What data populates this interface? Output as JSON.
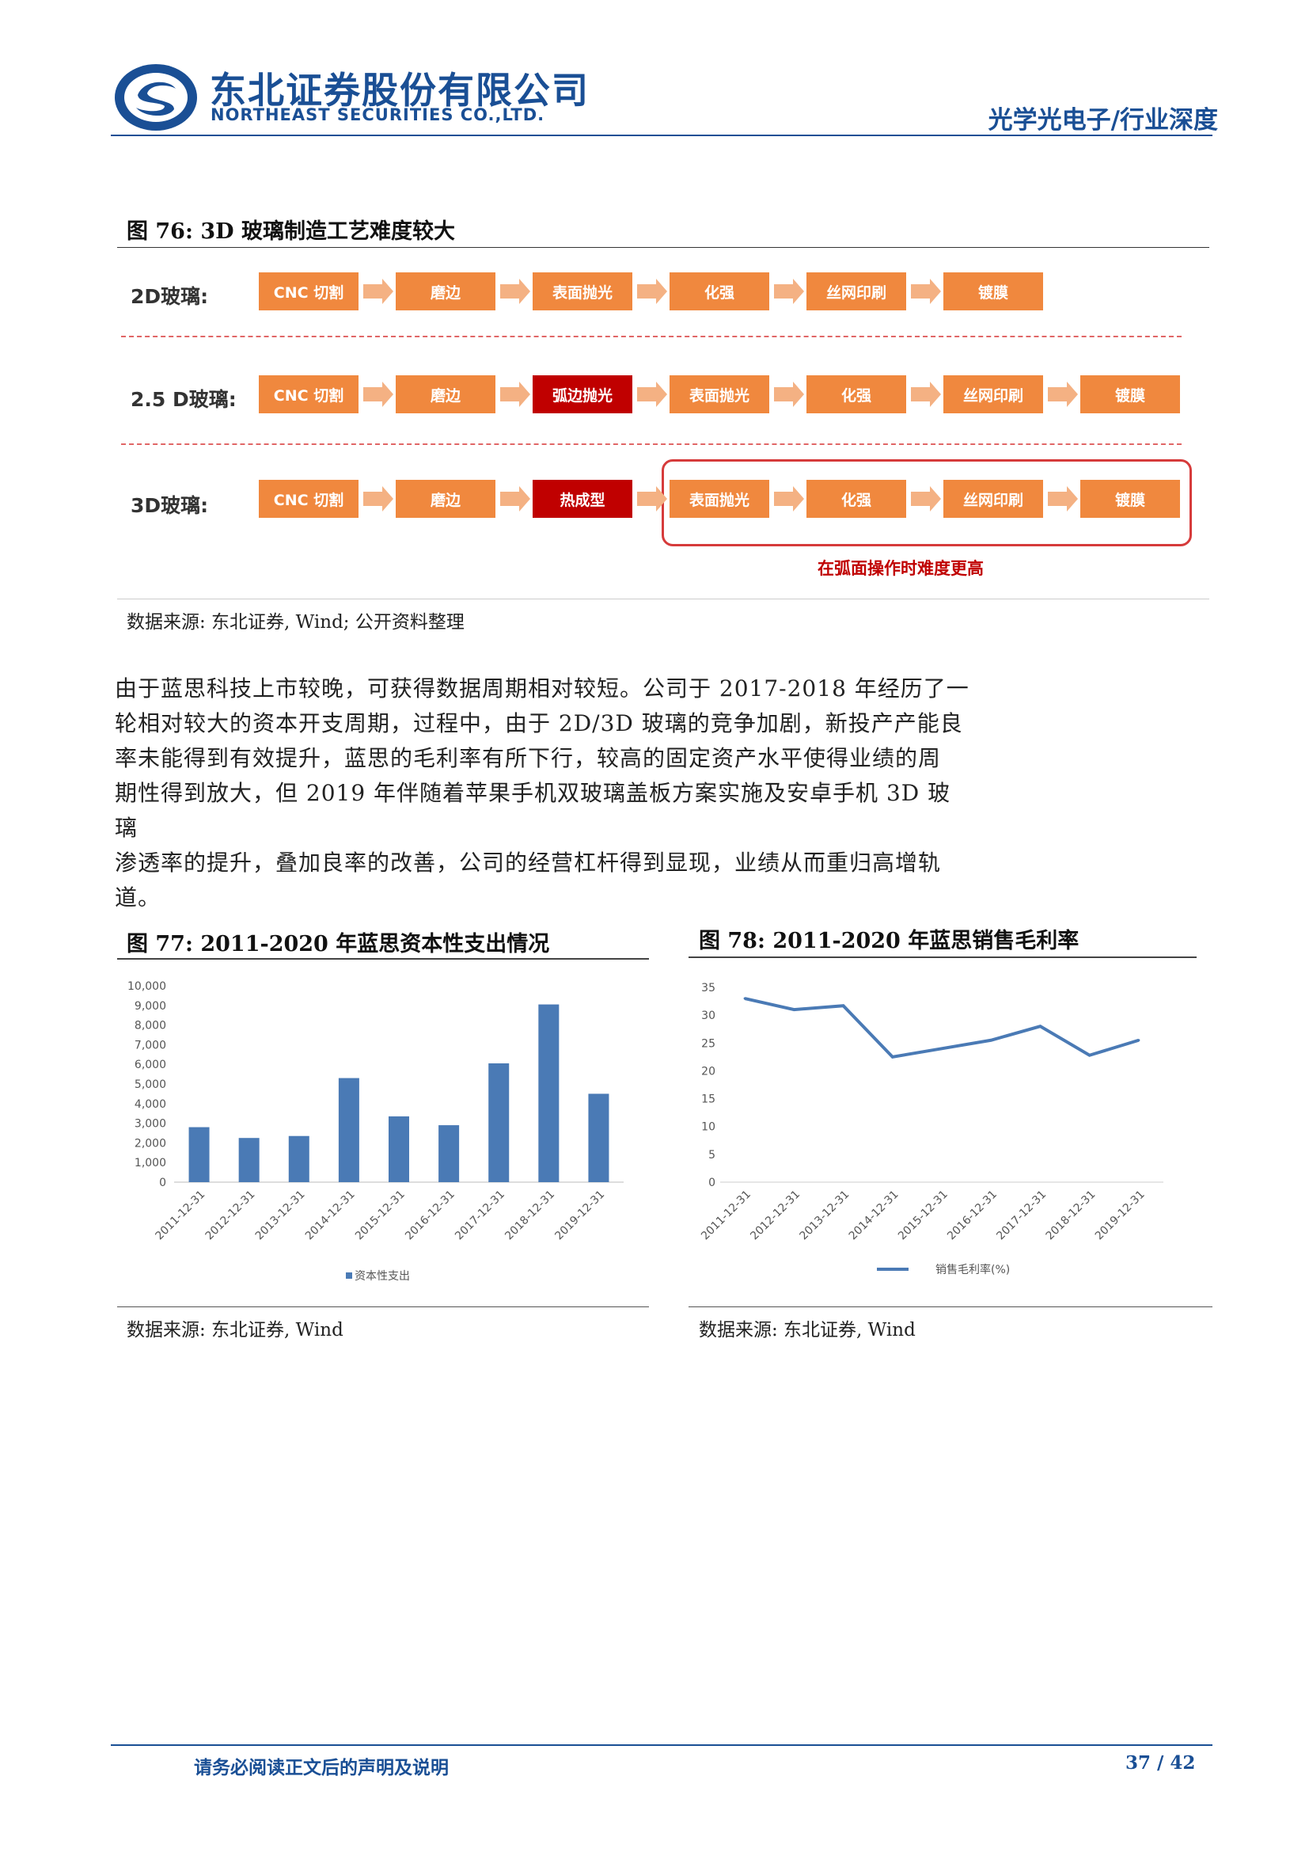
{
  "header": {
    "company_cn": "东北证券股份有限公司",
    "company_en": "NORTHEAST SECURITIES CO.,LTD.",
    "section": "光学光电子/行业深度"
  },
  "fig76": {
    "title": "图 76:  3D 玻璃制造工艺难度较大",
    "rows": [
      {
        "label": "2D玻璃:",
        "steps": [
          "CNC 切割",
          "磨边",
          "表面抛光",
          "化强",
          "丝网印刷",
          "镀膜"
        ]
      },
      {
        "label": "2.5 D玻璃:",
        "steps": [
          "CNC 切割",
          "磨边",
          "弧边抛光",
          "表面抛光",
          "化强",
          "丝网印刷",
          "镀膜"
        ]
      },
      {
        "label": "3D玻璃:",
        "steps": [
          "CNC 切割",
          "磨边",
          "热成型",
          "表面抛光",
          "化强",
          "丝网印刷",
          "镀膜"
        ]
      }
    ],
    "note": "在弧面操作时难度更高",
    "source": "数据来源:  东北证券,  Wind;  公开资料整理"
  },
  "body": {
    "lines": [
      "由于蓝思科技上市较晚，可获得数据周期相对较短。公司于 2017-2018 年经历了一",
      "轮相对较大的资本开支周期，过程中，由于 2D/3D 玻璃的竞争加剧，新投产产能良",
      "率未能得到有效提升，蓝思的毛利率有所下行，较高的固定资产水平使得业绩的周",
      "期性得到放大，但 2019 年伴随着苹果手机双玻璃盖板方案实施及安卓手机 3D 玻璃",
      "渗透率的提升，叠加良率的改善，公司的经营杠杆得到显现，业绩从而重归高增轨",
      "道。"
    ]
  },
  "fig77": {
    "title": "图 77:  2011-2020 年蓝思资本性支出情况",
    "source": "数据来源:  东北证券,  Wind"
  },
  "fig78": {
    "title": "图 78:  2011-2020 年蓝思销售毛利率",
    "source": "数据来源:  东北证券,  Wind"
  },
  "chart_data": [
    {
      "type": "bar",
      "categories": [
        "2011-12-31",
        "2012-12-31",
        "2013-12-31",
        "2014-12-31",
        "2015-12-31",
        "2016-12-31",
        "2017-12-31",
        "2018-12-31",
        "2019-12-31"
      ],
      "series": [
        {
          "name": "资本性支出",
          "values": [
            2800,
            2250,
            2350,
            5300,
            3350,
            2900,
            6050,
            9050,
            4500
          ]
        }
      ],
      "ylim": [
        0,
        10000
      ],
      "yticks": [
        "10,000",
        "9,000",
        "8,000",
        "7,000",
        "6,000",
        "5,000",
        "4,000",
        "3,000",
        "2,000",
        "1,000",
        "0"
      ],
      "color": "#4a7ab5",
      "legend": "bottom"
    },
    {
      "type": "line",
      "categories": [
        "2011-12-31",
        "2012-12-31",
        "2013-12-31",
        "2014-12-31",
        "2015-12-31",
        "2016-12-31",
        "2017-12-31",
        "2018-12-31",
        "2019-12-31"
      ],
      "series": [
        {
          "name": "销售毛利率(%)",
          "values": [
            33.0,
            31.0,
            31.7,
            22.5,
            24.0,
            25.5,
            28.0,
            22.8,
            25.5
          ]
        }
      ],
      "ylim": [
        0,
        35
      ],
      "yticks": [
        "35",
        "30",
        "25",
        "20",
        "15",
        "10",
        "5",
        "0"
      ],
      "color": "#4a7ab5",
      "legend": "bottom"
    }
  ],
  "footer": {
    "disclaimer": "请务必阅读正文后的声明及说明",
    "page": "37 / 42"
  }
}
